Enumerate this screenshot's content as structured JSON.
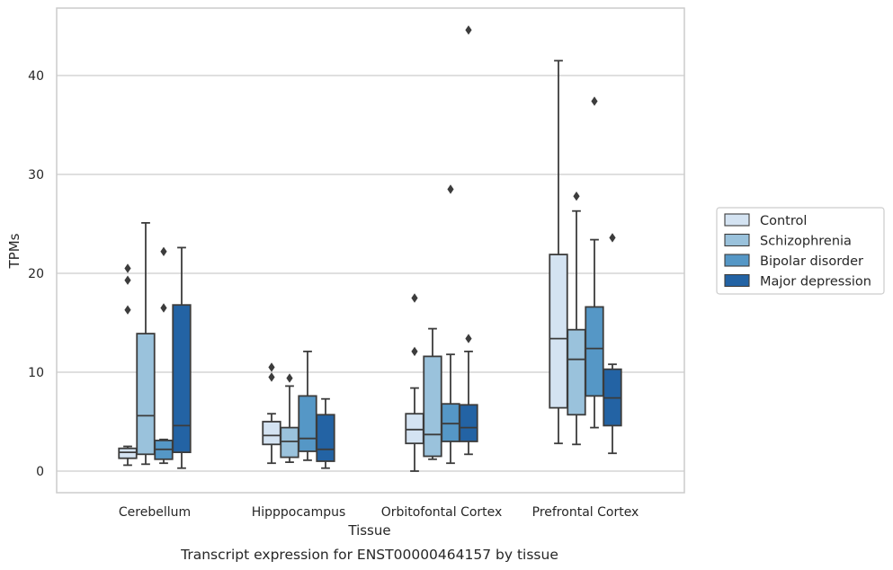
{
  "chart_data": {
    "type": "box",
    "title": "Transcript expression for ENST00000464157 by tissue",
    "xlabel": "Tissue",
    "ylabel": "TPMs",
    "ylim": [
      -2.1,
      46.8
    ],
    "yticks": [
      0,
      10,
      20,
      30,
      40
    ],
    "grid": "horizontal",
    "legend_position": "right",
    "categories": [
      "Cerebellum",
      "Hipppocampus",
      "Orbitofontal Cortex",
      "Prefrontal Cortex"
    ],
    "series": [
      {
        "name": "Control",
        "color": "#d4e3f2",
        "boxes": [
          {
            "whisker_low": 0.6,
            "q1": 1.3,
            "median": 1.9,
            "q3": 2.3,
            "whisker_high": 2.5,
            "outliers": [
              16.3,
              19.3,
              20.5
            ]
          },
          {
            "whisker_low": 0.8,
            "q1": 2.7,
            "median": 3.6,
            "q3": 5.0,
            "whisker_high": 5.8,
            "outliers": [
              9.5,
              10.5
            ]
          },
          {
            "whisker_low": 0.0,
            "q1": 2.8,
            "median": 4.2,
            "q3": 5.8,
            "whisker_high": 8.4,
            "outliers": [
              12.1,
              17.5
            ]
          },
          {
            "whisker_low": 2.8,
            "q1": 6.4,
            "median": 13.4,
            "q3": 21.9,
            "whisker_high": 41.5,
            "outliers": []
          }
        ]
      },
      {
        "name": "Schizophrenia",
        "color": "#9ac2dc",
        "boxes": [
          {
            "whisker_low": 0.7,
            "q1": 1.7,
            "median": 5.6,
            "q3": 13.9,
            "whisker_high": 25.1,
            "outliers": []
          },
          {
            "whisker_low": 0.9,
            "q1": 1.4,
            "median": 3.0,
            "q3": 4.4,
            "whisker_high": 8.6,
            "outliers": [
              9.4
            ]
          },
          {
            "whisker_low": 1.2,
            "q1": 1.5,
            "median": 3.7,
            "q3": 11.6,
            "whisker_high": 14.4,
            "outliers": []
          },
          {
            "whisker_low": 2.7,
            "q1": 5.7,
            "median": 11.3,
            "q3": 14.3,
            "whisker_high": 26.3,
            "outliers": [
              27.8
            ]
          }
        ]
      },
      {
        "name": "Bipolar disorder",
        "color": "#5597c6",
        "boxes": [
          {
            "whisker_low": 0.8,
            "q1": 1.2,
            "median": 2.2,
            "q3": 3.1,
            "whisker_high": 3.2,
            "outliers": [
              16.5,
              22.2
            ]
          },
          {
            "whisker_low": 1.1,
            "q1": 2.0,
            "median": 3.3,
            "q3": 7.6,
            "whisker_high": 12.1,
            "outliers": []
          },
          {
            "whisker_low": 0.8,
            "q1": 3.0,
            "median": 4.8,
            "q3": 6.8,
            "whisker_high": 11.8,
            "outliers": [
              28.5
            ]
          },
          {
            "whisker_low": 4.4,
            "q1": 7.6,
            "median": 12.4,
            "q3": 16.6,
            "whisker_high": 23.4,
            "outliers": [
              37.4
            ]
          }
        ]
      },
      {
        "name": "Major depression",
        "color": "#2363a4",
        "boxes": [
          {
            "whisker_low": 0.3,
            "q1": 1.9,
            "median": 4.6,
            "q3": 16.8,
            "whisker_high": 22.6,
            "outliers": []
          },
          {
            "whisker_low": 0.3,
            "q1": 1.0,
            "median": 2.2,
            "q3": 5.7,
            "whisker_high": 7.3,
            "outliers": []
          },
          {
            "whisker_low": 1.7,
            "q1": 3.0,
            "median": 4.4,
            "q3": 6.7,
            "whisker_high": 12.1,
            "outliers": [
              13.4,
              44.6
            ]
          },
          {
            "whisker_low": 1.8,
            "q1": 4.6,
            "median": 7.4,
            "q3": 10.3,
            "whisker_high": 10.8,
            "outliers": [
              23.6
            ]
          }
        ]
      }
    ]
  }
}
